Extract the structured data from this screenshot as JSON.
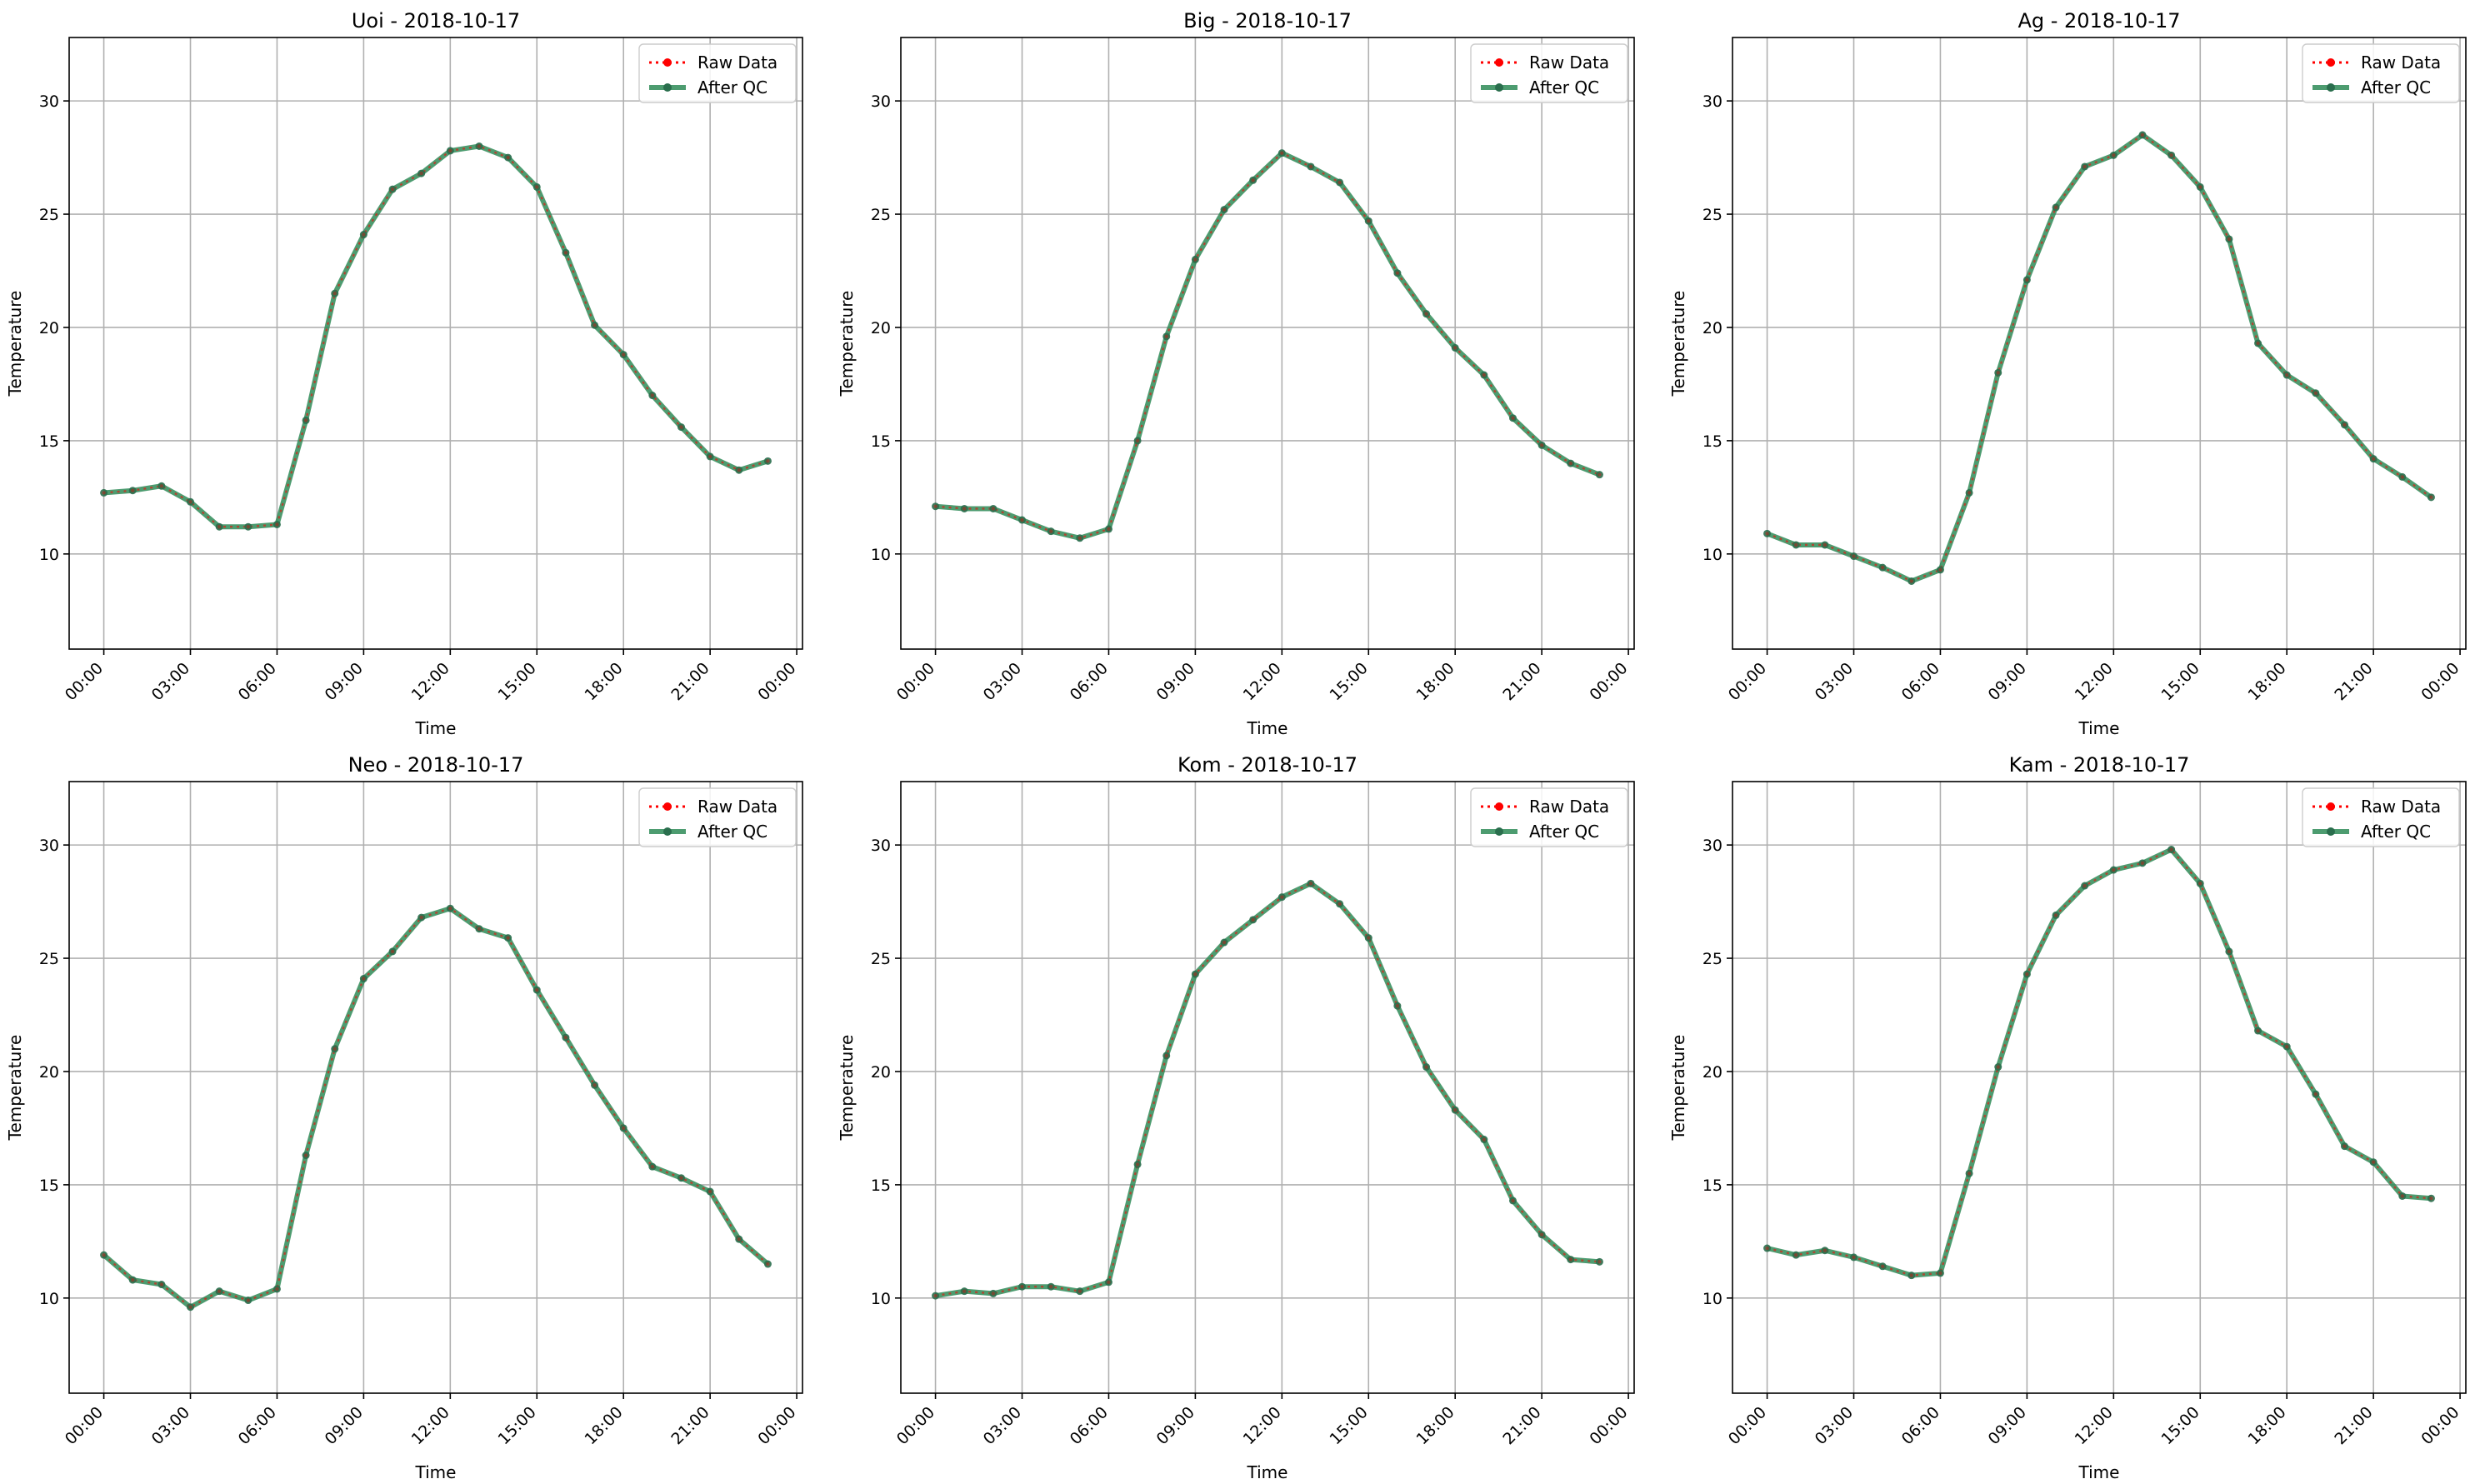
{
  "figure": {
    "background": "#ffffff"
  },
  "legend": {
    "placement": "top-right",
    "raw_label": "Raw Data",
    "qc_label": "After QC",
    "raw_color": "#ff0000",
    "qc_color": "#2e8b57"
  },
  "chart_data": [
    {
      "type": "line",
      "title": "Uoi - 2018-10-17",
      "xlabel": "Time",
      "ylabel": "Temperature",
      "x_ticks": [
        "00:00",
        "03:00",
        "06:00",
        "09:00",
        "12:00",
        "15:00",
        "18:00",
        "21:00",
        "00:00"
      ],
      "y_ticks": [
        10,
        15,
        20,
        25,
        30
      ],
      "xlim_hours": [
        -1.2,
        24.2
      ],
      "ylim": [
        5.8,
        32.8
      ],
      "grid": true,
      "x_hours": [
        0,
        1,
        2,
        3,
        4,
        5,
        6,
        7,
        8,
        9,
        10,
        11,
        12,
        13,
        14,
        15,
        16,
        17,
        18,
        19,
        20,
        21,
        22,
        23
      ],
      "series": [
        {
          "name": "Raw Data",
          "values": [
            12.7,
            12.8,
            13.0,
            12.3,
            11.2,
            11.2,
            11.3,
            15.9,
            21.5,
            24.1,
            26.1,
            26.8,
            27.8,
            28.0,
            27.5,
            26.2,
            23.3,
            20.1,
            18.8,
            17.0,
            15.6,
            14.3,
            13.7,
            14.1
          ]
        },
        {
          "name": "After QC",
          "values": [
            12.7,
            12.8,
            13.0,
            12.3,
            11.2,
            11.2,
            11.3,
            15.9,
            21.5,
            24.1,
            26.1,
            26.8,
            27.8,
            28.0,
            27.5,
            26.2,
            23.3,
            20.1,
            18.8,
            17.0,
            15.6,
            14.3,
            13.7,
            14.1
          ]
        }
      ]
    },
    {
      "type": "line",
      "title": "Big - 2018-10-17",
      "xlabel": "Time",
      "ylabel": "Temperature",
      "x_ticks": [
        "00:00",
        "03:00",
        "06:00",
        "09:00",
        "12:00",
        "15:00",
        "18:00",
        "21:00",
        "00:00"
      ],
      "y_ticks": [
        10,
        15,
        20,
        25,
        30
      ],
      "xlim_hours": [
        -1.2,
        24.2
      ],
      "ylim": [
        5.8,
        32.8
      ],
      "grid": true,
      "x_hours": [
        0,
        1,
        2,
        3,
        4,
        5,
        6,
        7,
        8,
        9,
        10,
        11,
        12,
        13,
        14,
        15,
        16,
        17,
        18,
        19,
        20,
        21,
        22,
        23
      ],
      "series": [
        {
          "name": "Raw Data",
          "values": [
            12.1,
            12.0,
            12.0,
            11.5,
            11.0,
            10.7,
            11.1,
            15.0,
            19.6,
            23.0,
            25.2,
            26.5,
            27.7,
            27.1,
            26.4,
            24.7,
            22.4,
            20.6,
            19.1,
            17.9,
            16.0,
            14.8,
            14.0,
            13.5
          ]
        },
        {
          "name": "After QC",
          "values": [
            12.1,
            12.0,
            12.0,
            11.5,
            11.0,
            10.7,
            11.1,
            15.0,
            19.6,
            23.0,
            25.2,
            26.5,
            27.7,
            27.1,
            26.4,
            24.7,
            22.4,
            20.6,
            19.1,
            17.9,
            16.0,
            14.8,
            14.0,
            13.5
          ]
        }
      ]
    },
    {
      "type": "line",
      "title": "Ag - 2018-10-17",
      "xlabel": "Time",
      "ylabel": "Temperature",
      "x_ticks": [
        "00:00",
        "03:00",
        "06:00",
        "09:00",
        "12:00",
        "15:00",
        "18:00",
        "21:00",
        "00:00"
      ],
      "y_ticks": [
        10,
        15,
        20,
        25,
        30
      ],
      "xlim_hours": [
        -1.2,
        24.2
      ],
      "ylim": [
        5.8,
        32.8
      ],
      "grid": true,
      "x_hours": [
        0,
        1,
        2,
        3,
        4,
        5,
        6,
        7,
        8,
        9,
        10,
        11,
        12,
        13,
        14,
        15,
        16,
        17,
        18,
        19,
        20,
        21,
        22,
        23
      ],
      "series": [
        {
          "name": "Raw Data",
          "values": [
            10.9,
            10.4,
            10.4,
            9.9,
            9.4,
            8.8,
            9.3,
            12.7,
            18.0,
            22.1,
            25.3,
            27.1,
            27.6,
            28.5,
            27.6,
            26.2,
            23.9,
            19.3,
            17.9,
            17.1,
            15.7,
            14.2,
            13.4,
            12.5
          ]
        },
        {
          "name": "After QC",
          "values": [
            10.9,
            10.4,
            10.4,
            9.9,
            9.4,
            8.8,
            9.3,
            12.7,
            18.0,
            22.1,
            25.3,
            27.1,
            27.6,
            28.5,
            27.6,
            26.2,
            23.9,
            19.3,
            17.9,
            17.1,
            15.7,
            14.2,
            13.4,
            12.5
          ]
        }
      ]
    },
    {
      "type": "line",
      "title": "Neo - 2018-10-17",
      "xlabel": "Time",
      "ylabel": "Temperature",
      "x_ticks": [
        "00:00",
        "03:00",
        "06:00",
        "09:00",
        "12:00",
        "15:00",
        "18:00",
        "21:00",
        "00:00"
      ],
      "y_ticks": [
        10,
        15,
        20,
        25,
        30
      ],
      "xlim_hours": [
        -1.2,
        24.2
      ],
      "ylim": [
        5.8,
        32.8
      ],
      "grid": true,
      "x_hours": [
        0,
        1,
        2,
        3,
        4,
        5,
        6,
        7,
        8,
        9,
        10,
        11,
        12,
        13,
        14,
        15,
        16,
        17,
        18,
        19,
        20,
        21,
        22,
        23
      ],
      "series": [
        {
          "name": "Raw Data",
          "values": [
            11.9,
            10.8,
            10.6,
            9.6,
            10.3,
            9.9,
            10.4,
            16.3,
            21.0,
            24.1,
            25.3,
            26.8,
            27.2,
            26.3,
            25.9,
            23.6,
            21.5,
            19.4,
            17.5,
            15.8,
            15.3,
            14.7,
            12.6,
            11.5
          ]
        },
        {
          "name": "After QC",
          "values": [
            11.9,
            10.8,
            10.6,
            9.6,
            10.3,
            9.9,
            10.4,
            16.3,
            21.0,
            24.1,
            25.3,
            26.8,
            27.2,
            26.3,
            25.9,
            23.6,
            21.5,
            19.4,
            17.5,
            15.8,
            15.3,
            14.7,
            12.6,
            11.5
          ]
        }
      ]
    },
    {
      "type": "line",
      "title": "Kom - 2018-10-17",
      "xlabel": "Time",
      "ylabel": "Temperature",
      "x_ticks": [
        "00:00",
        "03:00",
        "06:00",
        "09:00",
        "12:00",
        "15:00",
        "18:00",
        "21:00",
        "00:00"
      ],
      "y_ticks": [
        10,
        15,
        20,
        25,
        30
      ],
      "xlim_hours": [
        -1.2,
        24.2
      ],
      "ylim": [
        5.8,
        32.8
      ],
      "grid": true,
      "x_hours": [
        0,
        1,
        2,
        3,
        4,
        5,
        6,
        7,
        8,
        9,
        10,
        11,
        12,
        13,
        14,
        15,
        16,
        17,
        18,
        19,
        20,
        21,
        22,
        23
      ],
      "series": [
        {
          "name": "Raw Data",
          "values": [
            10.1,
            10.3,
            10.2,
            10.5,
            10.5,
            10.3,
            10.7,
            15.9,
            20.7,
            24.3,
            25.7,
            26.7,
            27.7,
            28.3,
            27.4,
            25.9,
            22.9,
            20.2,
            18.3,
            17.0,
            14.3,
            12.8,
            11.7,
            11.6
          ]
        },
        {
          "name": "After QC",
          "values": [
            10.1,
            10.3,
            10.2,
            10.5,
            10.5,
            10.3,
            10.7,
            15.9,
            20.7,
            24.3,
            25.7,
            26.7,
            27.7,
            28.3,
            27.4,
            25.9,
            22.9,
            20.2,
            18.3,
            17.0,
            14.3,
            12.8,
            11.7,
            11.6
          ]
        }
      ]
    },
    {
      "type": "line",
      "title": "Kam - 2018-10-17",
      "xlabel": "Time",
      "ylabel": "Temperature",
      "x_ticks": [
        "00:00",
        "03:00",
        "06:00",
        "09:00",
        "12:00",
        "15:00",
        "18:00",
        "21:00",
        "00:00"
      ],
      "y_ticks": [
        10,
        15,
        20,
        25,
        30
      ],
      "xlim_hours": [
        -1.2,
        24.2
      ],
      "ylim": [
        5.8,
        32.8
      ],
      "grid": true,
      "x_hours": [
        0,
        1,
        2,
        3,
        4,
        5,
        6,
        7,
        8,
        9,
        10,
        11,
        12,
        13,
        14,
        15,
        16,
        17,
        18,
        19,
        20,
        21,
        22,
        23
      ],
      "series": [
        {
          "name": "Raw Data",
          "values": [
            12.2,
            11.9,
            12.1,
            11.8,
            11.4,
            11.0,
            11.1,
            15.5,
            20.2,
            24.3,
            26.9,
            28.2,
            28.9,
            29.2,
            29.8,
            28.3,
            25.3,
            21.8,
            21.1,
            19.0,
            16.7,
            16.0,
            14.5,
            14.4
          ]
        },
        {
          "name": "After QC",
          "values": [
            12.2,
            11.9,
            12.1,
            11.8,
            11.4,
            11.0,
            11.1,
            15.5,
            20.2,
            24.3,
            26.9,
            28.2,
            28.9,
            29.2,
            29.8,
            28.3,
            25.3,
            21.8,
            21.1,
            19.0,
            16.7,
            16.0,
            14.5,
            14.4
          ]
        }
      ]
    }
  ]
}
